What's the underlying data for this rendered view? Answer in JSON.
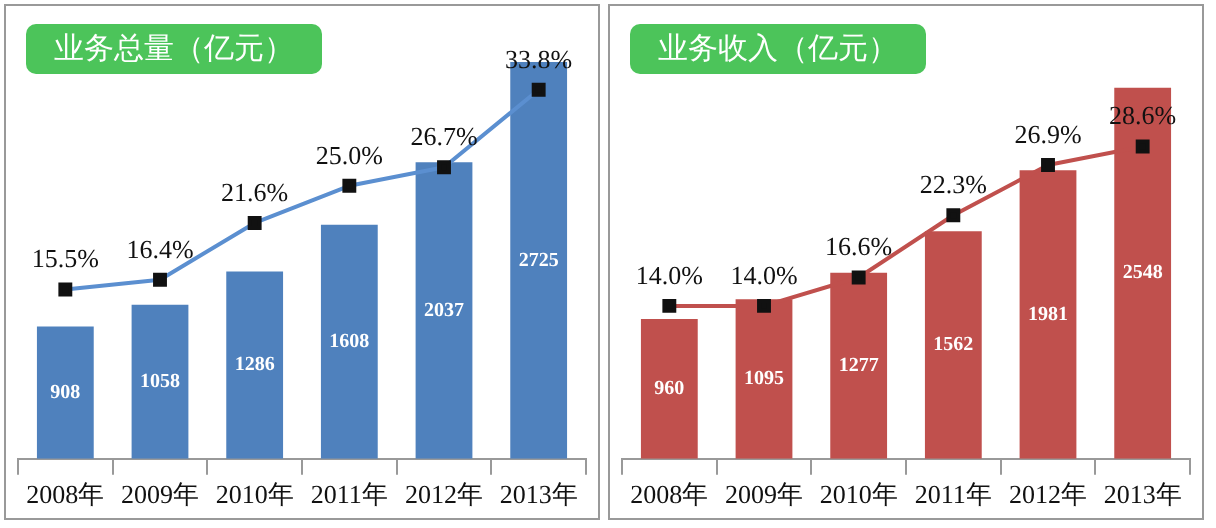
{
  "chart_data": [
    {
      "type": "bar",
      "title": "业务总量（亿元）",
      "categories": [
        "2008年",
        "2009年",
        "2010年",
        "2011年",
        "2012年",
        "2013年"
      ],
      "ylim": [
        0,
        3000
      ],
      "y2lim": [
        0,
        40
      ],
      "tick_labels": "x",
      "grid": false,
      "legend": false,
      "series": [
        {
          "color": "#4f81bd",
          "values": [
            908,
            1058,
            1286,
            1608,
            2037,
            2725
          ],
          "value_labels": [
            "908",
            "1058",
            "1286",
            "1608",
            "2037",
            "2725"
          ]
        },
        {
          "type": "line",
          "axis": "y2",
          "color": "#5b8fd0",
          "marker": "square",
          "values": [
            15.5,
            16.4,
            21.6,
            25.0,
            26.7,
            33.8
          ],
          "value_labels": [
            "15.5%",
            "16.4%",
            "21.6%",
            "25.0%",
            "26.7%",
            "33.8%"
          ]
        }
      ]
    },
    {
      "type": "bar",
      "title": "业务收入（亿元）",
      "categories": [
        "2008年",
        "2009年",
        "2010年",
        "2011年",
        "2012年",
        "2013年"
      ],
      "ylim": [
        0,
        3000
      ],
      "y2lim": [
        0,
        40
      ],
      "tick_labels": "x",
      "grid": false,
      "legend": false,
      "series": [
        {
          "color": "#c0504d",
          "values": [
            960,
            1095,
            1277,
            1562,
            1981,
            2548
          ],
          "value_labels": [
            "960",
            "1095",
            "1277",
            "1562",
            "1981",
            "2548"
          ]
        },
        {
          "type": "line",
          "axis": "y2",
          "color": "#c0504d",
          "marker": "square",
          "values": [
            14.0,
            14.0,
            16.6,
            22.3,
            26.9,
            28.6
          ],
          "value_labels": [
            "14.0%",
            "14.0%",
            "16.6%",
            "22.3%",
            "26.9%",
            "28.6%"
          ]
        }
      ]
    }
  ]
}
